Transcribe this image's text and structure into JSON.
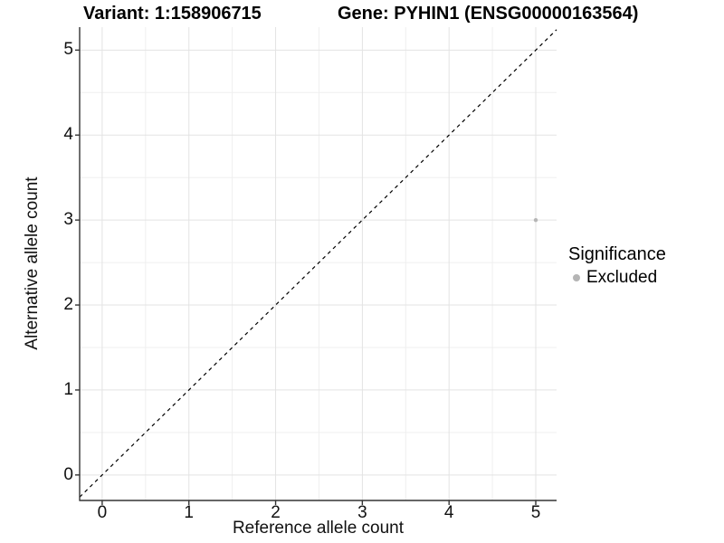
{
  "chart_data": {
    "type": "scatter",
    "titles": {
      "left": "Variant: 1:158906715",
      "right": "Gene: PYHIN1 (ENSG00000163564)"
    },
    "xlabel": "Reference allele count",
    "ylabel": "Alternative allele count",
    "xlim": [
      -0.26,
      5.24
    ],
    "ylim": [
      -0.3,
      5.27
    ],
    "x_major_ticks": [
      0,
      1,
      2,
      3,
      4,
      5
    ],
    "y_major_ticks": [
      0,
      1,
      2,
      3,
      4,
      5
    ],
    "x_minor_ticks": [
      0.5,
      1.5,
      2.5,
      3.5,
      4.5
    ],
    "y_minor_ticks": [
      0.5,
      1.5,
      2.5,
      3.5,
      4.5
    ],
    "grid": true,
    "series": [
      {
        "name": "Excluded",
        "color": "#b5b5b5",
        "points": [
          {
            "x": 5,
            "y": 3
          }
        ]
      }
    ],
    "reference_line": {
      "type": "identity",
      "style": "dashed",
      "color": "#000000"
    },
    "legend": {
      "title": "Significance",
      "position": "right",
      "items": [
        {
          "label": "Excluded",
          "color": "#b5b5b5",
          "marker": "circle"
        }
      ]
    },
    "colors": {
      "grid_major": "#e3e3e3",
      "grid_minor": "#efefef",
      "axis_line": "#333333",
      "point": "#b5b5b5",
      "text": "#111111"
    }
  }
}
